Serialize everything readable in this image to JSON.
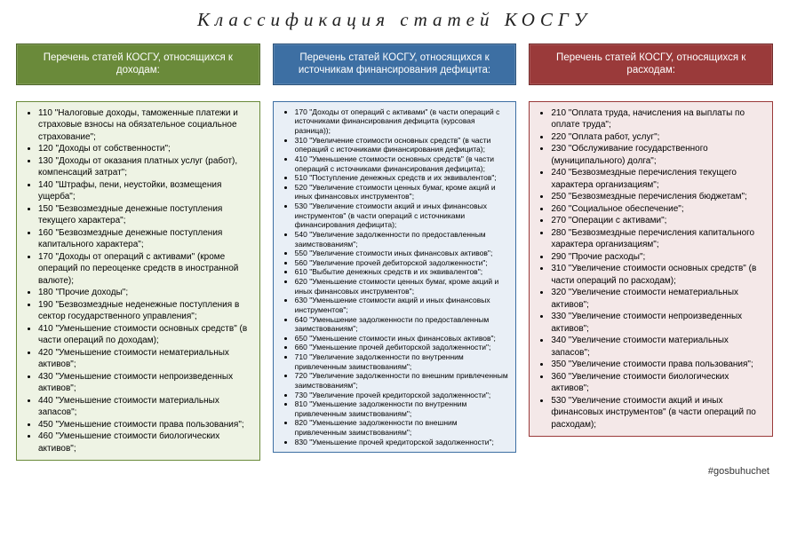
{
  "title": "Классификация статей КОСГУ",
  "hashtag": "#gosbuhuchet",
  "colors": {
    "headers": [
      "#6a8a3a",
      "#3d6fa3",
      "#9a3a3a"
    ],
    "body_bg": [
      "#eef3e4",
      "#e9eff6",
      "#f4e8e8"
    ],
    "body_border": [
      "#6a8a3a",
      "#3d6fa3",
      "#9a3a3a"
    ]
  },
  "columns": [
    {
      "header": "Перечень статей КОСГУ, относящихся к доходам:",
      "items": [
        "110 \"Налоговые доходы, таможенные платежи и страховые взносы на обязательное социальное страхование\";",
        "120 \"Доходы от собственности\";",
        "130 \"Доходы от оказания платных услуг (работ), компенсаций затрат\";",
        "140 \"Штрафы, пени, неустойки, возмещения ущерба\";",
        "150 \"Безвозмездные денежные поступления текущего характера\";",
        "160 \"Безвозмездные денежные поступления капитального характера\";",
        "170 \"Доходы от операций с активами\" (кроме операций по переоценке средств в иностранной валюте);",
        "180 \"Прочие доходы\";",
        "190 \"Безвозмездные неденежные поступления в сектор государственного управления\";",
        "410 \"Уменьшение стоимости основных средств\" (в части операций по доходам);",
        "420 \"Уменьшение стоимости нематериальных активов\";",
        "430 \"Уменьшение стоимости непроизведенных активов\";",
        "440 \"Уменьшение стоимости материальных запасов\";",
        "450 \"Уменьшение стоимости права пользования\";",
        "460 \"Уменьшение стоимости биологических активов\";"
      ]
    },
    {
      "header": "Перечень статей КОСГУ, относящихся к источникам финансирования дефицита:",
      "items": [
        "170 \"Доходы от операций с активами\" (в части операций с источниками финансирования дефицита (курсовая разница));",
        "310 \"Увеличение стоимости основных средств\" (в части операций с источниками финансирования дефицита);",
        "410 \"Уменьшение стоимости основных средств\" (в части операций с источниками финансирования дефицита);",
        "510 \"Поступление денежных средств и их эквивалентов\";",
        "520 \"Увеличение стоимости ценных бумаг, кроме акций и иных финансовых инструментов\";",
        "530 \"Увеличение стоимости акций и иных финансовых инструментов\" (в части операций с источниками финансирования дефицита);",
        "540 \"Увеличение задолженности по предоставленным заимствованиям\";",
        "550 \"Увеличение стоимости иных финансовых активов\";",
        "560 \"Увеличение прочей дебиторской задолженности\";",
        "610 \"Выбытие денежных средств и их эквивалентов\";",
        "620 \"Уменьшение стоимости ценных бумаг, кроме акций и иных финансовых инструментов\";",
        "630 \"Уменьшение стоимости акций и иных финансовых инструментов\";",
        "640 \"Уменьшение задолженности по предоставленным заимствованиям\";",
        "650 \"Уменьшение стоимости иных финансовых активов\";",
        "660 \"Уменьшение прочей дебиторской задолженности\";",
        "710 \"Увеличение задолженности по внутренним привлеченным заимствованиям\";",
        "720 \"Увеличение задолженности по внешним привлеченным заимствованиям\";",
        "730 \"Увеличение прочей кредиторской задолженности\";",
        "810 \"Уменьшение задолженности по внутренним привлеченным заимствованиям\";",
        "820 \"Уменьшение задолженности по внешним привлеченным заимствованиям\";",
        "830 \"Уменьшение прочей кредиторской задолженности\";"
      ]
    },
    {
      "header": "Перечень статей КОСГУ, относящихся к расходам:",
      "items": [
        "210 \"Оплата труда, начисления на выплаты по оплате труда\";",
        "220 \"Оплата работ, услуг\";",
        "230 \"Обслуживание государственного (муниципального) долга\";",
        "240 \"Безвозмездные перечисления текущего характера организациям\";",
        "250 \"Безвозмездные перечисления бюджетам\";",
        "260 \"Социальное обеспечение\";",
        "270 \"Операции с активами\";",
        "280 \"Безвозмездные перечисления капитального характера организациям\";",
        "290 \"Прочие расходы\";",
        "310 \"Увеличение стоимости основных средств\" (в части операций по расходам);",
        "320 \"Увеличение стоимости нематериальных активов\";",
        "330 \"Увеличение стоимости непроизведенных активов\";",
        "340 \"Увеличение стоимости материальных запасов\";",
        "350 \"Увеличение стоимости права пользования\";",
        "360 \"Увеличение стоимости биологических активов\";",
        "530 \"Увеличение стоимости акций и иных финансовых инструментов\" (в части операций по расходам);"
      ]
    }
  ]
}
